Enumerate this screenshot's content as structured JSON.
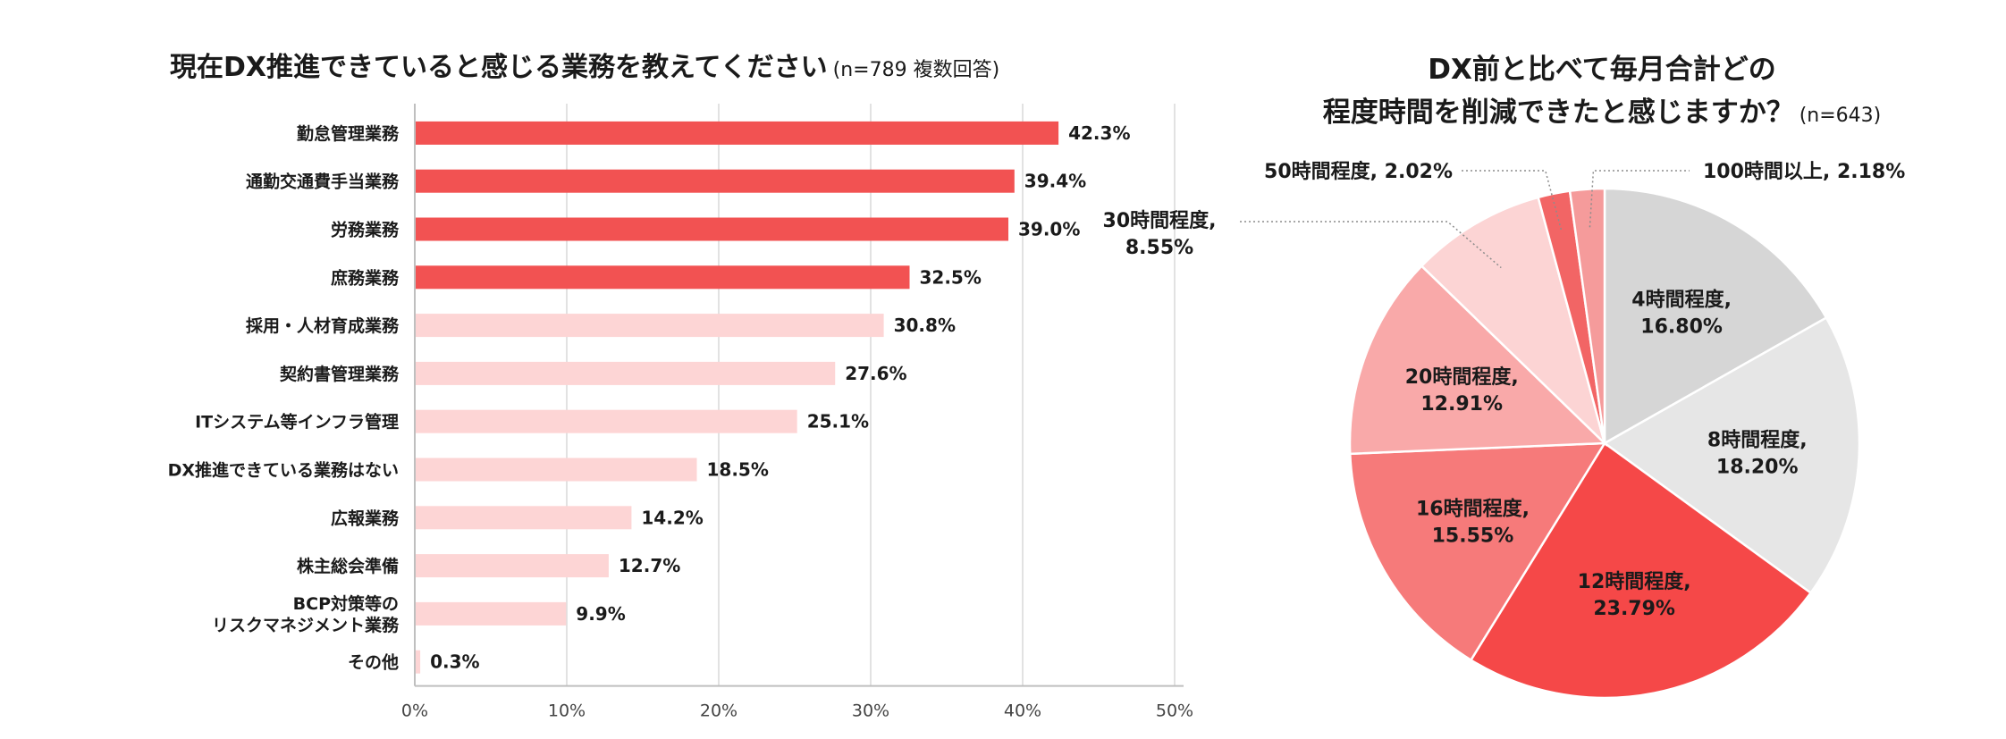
{
  "chart_data": [
    {
      "type": "bar",
      "orientation": "horizontal",
      "title": "現在DX推進できていると感じる業務を教えてください",
      "subtitle": "(n=789 複数回答)",
      "xlabel": "",
      "ylabel": "",
      "xlim": [
        0,
        50
      ],
      "x_ticks": [
        "0%",
        "10%",
        "20%",
        "30%",
        "40%",
        "50%"
      ],
      "grid": "vertical",
      "categories": [
        "勤怠管理業務",
        "通勤交通費手当業務",
        "労務業務",
        "庶務業務",
        "採用・人材育成業務",
        "契約書管理業務",
        "ITシステム等インフラ管理",
        "DX推進できている業務はない",
        "広報業務",
        "株主総会準備",
        "BCP対策等の\nリスクマネジメント業務",
        "その他"
      ],
      "values": [
        42.3,
        39.4,
        39.0,
        32.5,
        30.8,
        27.6,
        25.1,
        18.5,
        14.2,
        12.7,
        9.9,
        0.3
      ],
      "value_labels": [
        "42.3%",
        "39.4%",
        "39.0%",
        "32.5%",
        "30.8%",
        "27.6%",
        "25.1%",
        "18.5%",
        "14.2%",
        "12.7%",
        "9.9%",
        "0.3%"
      ],
      "highlight_count": 4,
      "colors": {
        "highlight": "#f25252",
        "normal": "#fdd5d5",
        "grid": "#d9d9d9",
        "axis": "#bfbfbf"
      }
    },
    {
      "type": "pie",
      "title_lines": [
        "DX前と比べて毎月合計どの",
        "程度時間を削減できたと感じますか？"
      ],
      "subtitle": "(n=643)",
      "slices": [
        {
          "label": "4時間程度",
          "value": 16.8,
          "text": "16.80%",
          "color": "#d6d6d6",
          "label_pos": "inside"
        },
        {
          "label": "8時間程度",
          "value": 18.2,
          "text": "18.20%",
          "color": "#e6e6e6",
          "label_pos": "inside"
        },
        {
          "label": "12時間程度",
          "value": 23.79,
          "text": "23.79%",
          "color": "#f54848",
          "label_pos": "inside"
        },
        {
          "label": "16時間程度",
          "value": 15.55,
          "text": "15.55%",
          "color": "#f67a7a",
          "label_pos": "inside"
        },
        {
          "label": "20時間程度",
          "value": 12.91,
          "text": "12.91%",
          "color": "#f9a9a9",
          "label_pos": "inside"
        },
        {
          "label": "30時間程度",
          "value": 8.55,
          "text": "8.55%",
          "color": "#fcd4d4",
          "label_pos": "outside-left"
        },
        {
          "label": "50時間程度",
          "value": 2.02,
          "text": "2.02%",
          "color": "#f26565",
          "label_pos": "outside-top-left"
        },
        {
          "label": "100時間以上",
          "value": 2.18,
          "text": "2.18%",
          "color": "#f59b9b",
          "label_pos": "outside-top-right"
        }
      ],
      "leader_line_color": "#8c8c8c"
    }
  ]
}
